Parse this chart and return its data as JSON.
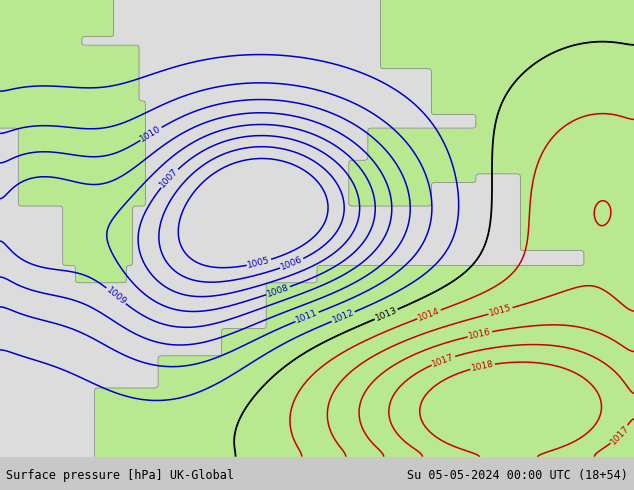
{
  "title_left": "Surface pressure [hPa] UK-Global",
  "title_right": "Su 05-05-2024 00:00 UTC (18+54)",
  "background_land": "#b8e890",
  "background_sea": "#dcdcdc",
  "contour_color_blue": "#0000cc",
  "contour_color_black": "#000000",
  "contour_color_red": "#cc0000",
  "bottom_bar_color": "#c8c8c8",
  "bottom_text_color": "#000000",
  "figsize": [
    6.34,
    4.9
  ],
  "dpi": 100
}
